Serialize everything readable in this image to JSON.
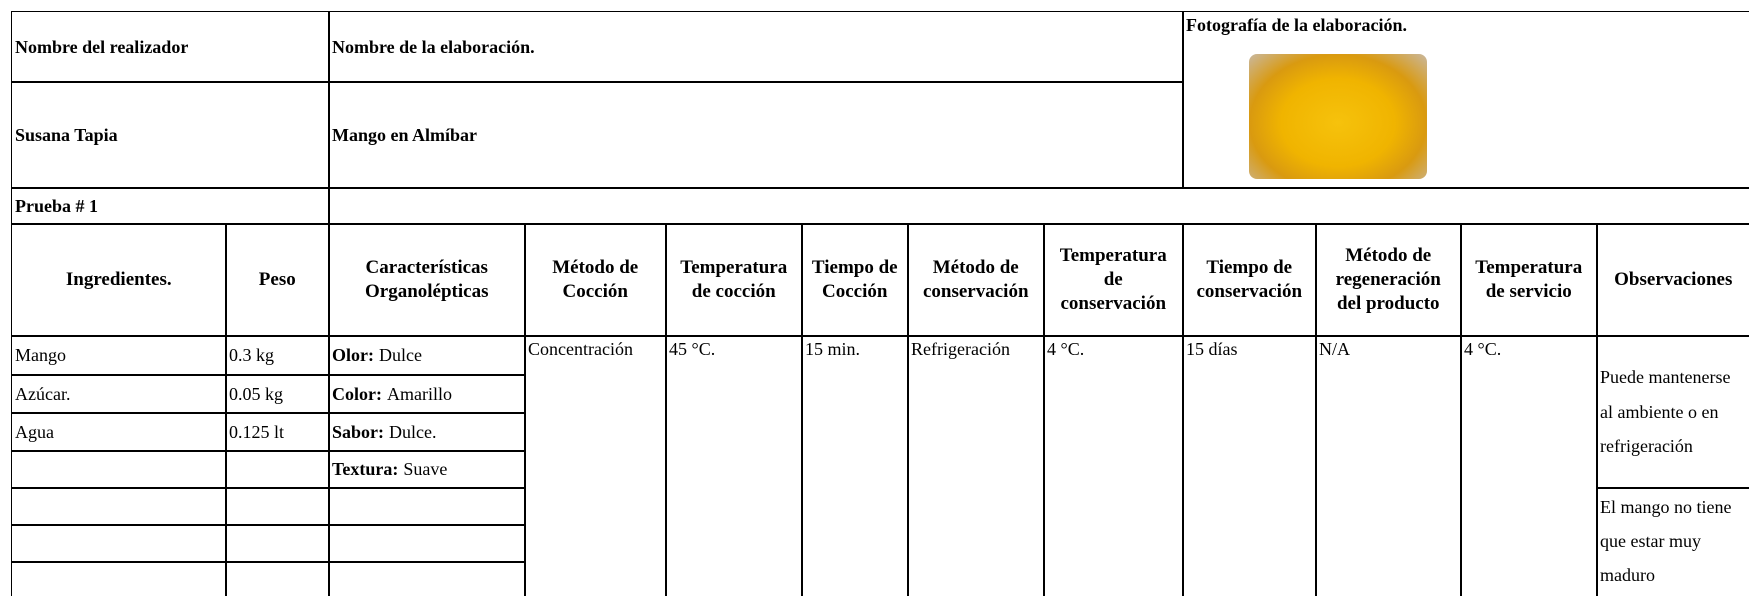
{
  "header": {
    "performer_label": "Nombre del realizador",
    "performer": "Susana Tapia",
    "dish_label": "Nombre de la elaboración.",
    "dish": "Mango en Almíbar",
    "photo_label": "Fotografía de la elaboración."
  },
  "test_label": "Prueba # 1",
  "columns": [
    "Ingredientes.",
    "Peso",
    "Características\nOrganolépticas",
    "Método de\nCocción",
    "Temperatura\nde cocción",
    "Tiempo de\nCocción",
    "Método de\nconservación",
    "Temperatura\nde\nconservación",
    "Tiempo de\nconservación",
    "Método de\nregeneración\ndel producto",
    "Temperatura\nde servicio",
    "Observaciones"
  ],
  "ingredients": [
    {
      "name": "Mango",
      "weight": "0.3 kg"
    },
    {
      "name": "Azúcar.",
      "weight": "0.05 kg"
    },
    {
      "name": "Agua",
      "weight": "0.125 lt"
    }
  ],
  "characteristics": [
    {
      "label": "Olor:",
      "value": "Dulce"
    },
    {
      "label": "Color:",
      "value": "Amarillo"
    },
    {
      "label": "Sabor:",
      "value": "Dulce."
    },
    {
      "label": "Textura:",
      "value": "Suave"
    }
  ],
  "details": [
    "Concentración",
    "45 °C.",
    "15 min.",
    "Refrigeración",
    "4 °C.",
    "15 días",
    "N/A",
    "4 °C."
  ],
  "observations": [
    "Puede mantenerse al ambiente o en refrigeración",
    "El mango no tiene que estar muy maduro"
  ]
}
